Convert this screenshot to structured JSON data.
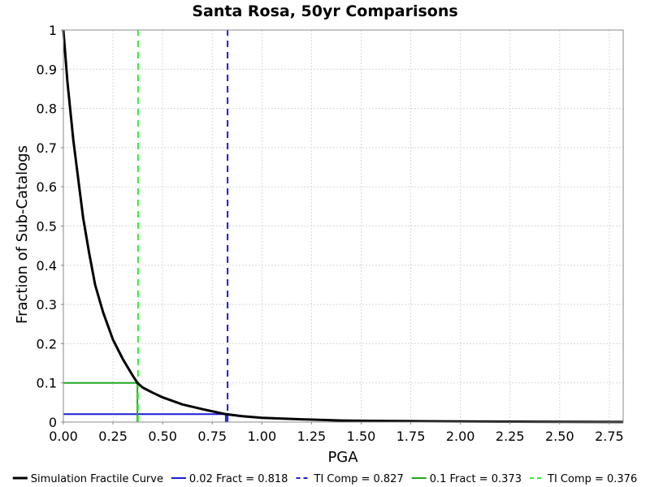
{
  "chart_data": {
    "type": "line",
    "title": "Santa Rosa, 50yr Comparisons",
    "xlabel": "PGA",
    "ylabel": "Fraction of Sub-Catalogs",
    "xlim": [
      0,
      2.82
    ],
    "ylim": [
      0,
      1
    ],
    "x_ticks": [
      "0.00",
      "0.25",
      "0.50",
      "0.75",
      "1.00",
      "1.25",
      "1.50",
      "1.75",
      "2.00",
      "2.25",
      "2.50",
      "2.75"
    ],
    "y_ticks": [
      "0",
      "0.1",
      "0.2",
      "0.3",
      "0.4",
      "0.5",
      "0.6",
      "0.7",
      "0.8",
      "0.9",
      "1"
    ],
    "grid": true,
    "legend_position": "bottom",
    "series": [
      {
        "name": "Simulation Fractile Curve",
        "color": "#000000",
        "style": "solid",
        "x": [
          0.0,
          0.02,
          0.05,
          0.08,
          0.1,
          0.13,
          0.16,
          0.2,
          0.25,
          0.3,
          0.35,
          0.373,
          0.4,
          0.45,
          0.5,
          0.6,
          0.7,
          0.818,
          0.9,
          1.0,
          1.2,
          1.4,
          1.6,
          1.8,
          2.0,
          2.2,
          2.4,
          2.6,
          2.82
        ],
        "y": [
          1.0,
          0.87,
          0.72,
          0.6,
          0.52,
          0.43,
          0.35,
          0.28,
          0.21,
          0.16,
          0.118,
          0.1,
          0.088,
          0.075,
          0.063,
          0.045,
          0.033,
          0.02,
          0.015,
          0.011,
          0.007,
          0.004,
          0.003,
          0.002,
          0.0015,
          0.001,
          0.0008,
          0.0005,
          0.0003
        ]
      },
      {
        "name": "0.02 Fract = 0.818",
        "color": "#1c1cd6",
        "style": "solid",
        "x": [
          0.0,
          0.818,
          0.818
        ],
        "y": [
          0.02,
          0.02,
          0.0
        ]
      },
      {
        "name": "TI Comp = 0.827",
        "color": "#1c1cd6",
        "style": "dashed",
        "x": [
          0.827,
          0.827
        ],
        "y": [
          0.0,
          1.0
        ]
      },
      {
        "name": "0.1 Fract = 0.373",
        "color": "#1faa1f",
        "style": "solid",
        "x": [
          0.0,
          0.373,
          0.373
        ],
        "y": [
          0.1,
          0.1,
          0.0
        ]
      },
      {
        "name": "TI Comp = 0.376",
        "color": "#33ee33",
        "style": "dashed",
        "x": [
          0.376,
          0.376
        ],
        "y": [
          0.0,
          1.0
        ]
      }
    ]
  }
}
